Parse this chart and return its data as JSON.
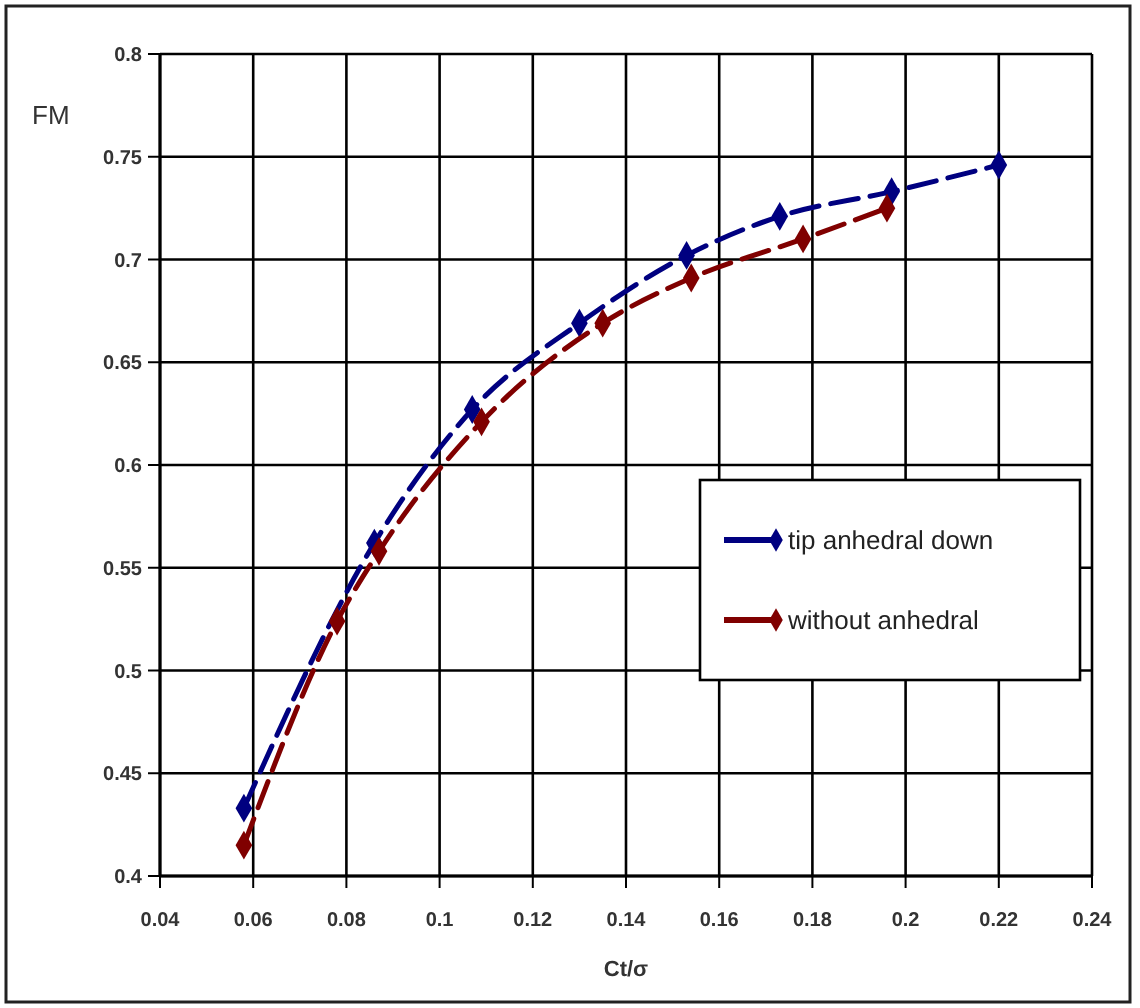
{
  "chart_data": {
    "type": "line",
    "xlabel": "Ct/σ",
    "ylabel": "FM",
    "xlim": [
      0.04,
      0.24
    ],
    "xticks": [
      0.04,
      0.06,
      0.08,
      0.1,
      0.12,
      0.14,
      0.16,
      0.18,
      0.2,
      0.22,
      0.24
    ],
    "ylim": [
      0.4,
      0.8
    ],
    "yticks": [
      0.4,
      0.45,
      0.5,
      0.55,
      0.6,
      0.65,
      0.7,
      0.75,
      0.8
    ],
    "grid": true,
    "legend": "right",
    "marker": "diamond",
    "line_style": "dashed",
    "series": [
      {
        "name": "tip anhedral down",
        "color": "#000080",
        "x": [
          0.058,
          0.086,
          0.107,
          0.13,
          0.153,
          0.173,
          0.197,
          0.22
        ],
        "values": [
          0.433,
          0.562,
          0.627,
          0.669,
          0.702,
          0.721,
          0.733,
          0.746
        ]
      },
      {
        "name": "without anhedral",
        "color": "#800000",
        "x": [
          0.058,
          0.078,
          0.087,
          0.109,
          0.135,
          0.154,
          0.178,
          0.196
        ],
        "values": [
          0.415,
          0.524,
          0.558,
          0.621,
          0.669,
          0.691,
          0.71,
          0.725
        ]
      }
    ]
  }
}
